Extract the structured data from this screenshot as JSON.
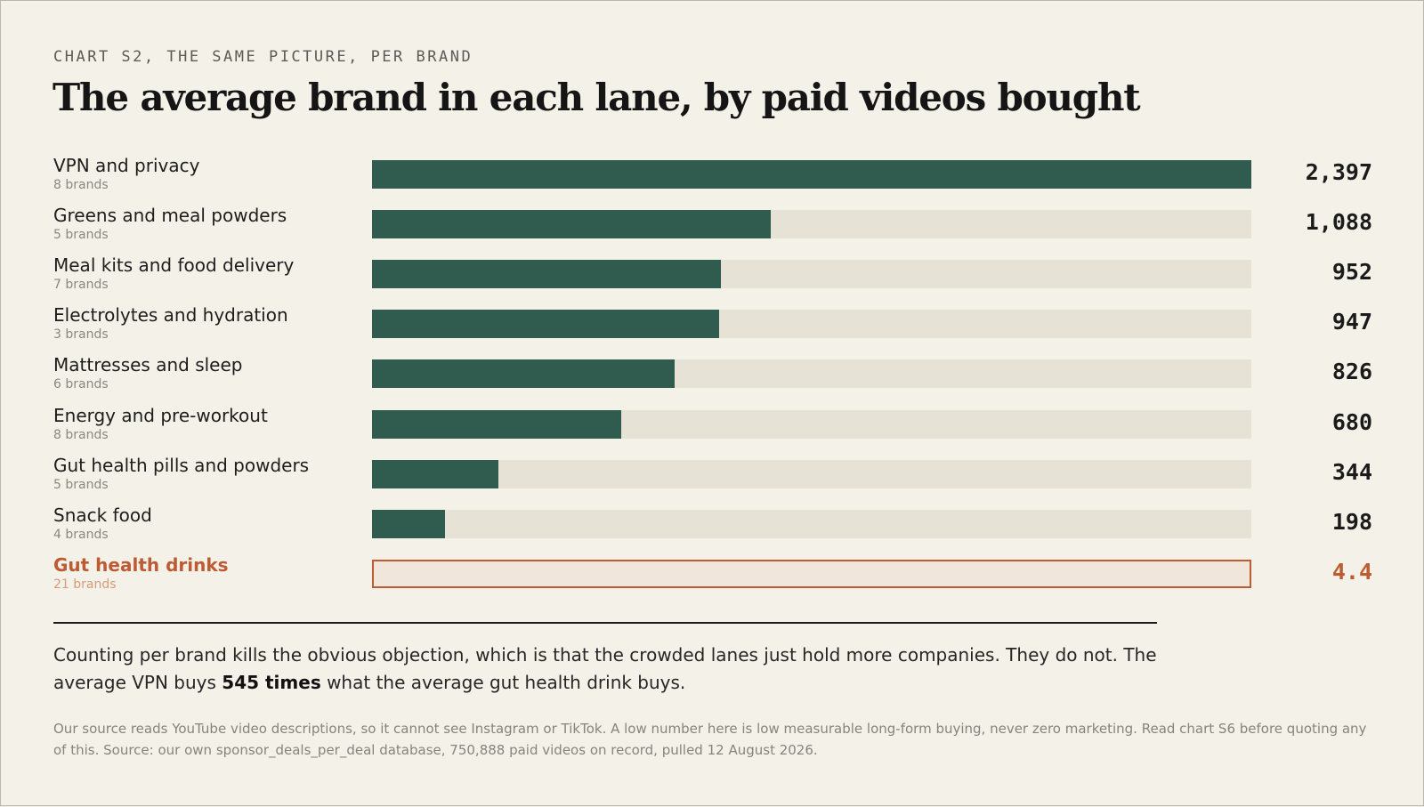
{
  "kicker": "CHART S2, THE SAME PICTURE, PER BRAND",
  "title": "The average brand in each lane, by paid videos bought",
  "colors": {
    "bar": "#2f5c4f",
    "track": "#e6e2d6",
    "highlight": "#bd5b33",
    "background": "#f4f1e8"
  },
  "chart_data": {
    "type": "bar",
    "orientation": "horizontal",
    "categories": [
      "VPN and privacy",
      "Greens and meal powders",
      "Meal kits and food delivery",
      "Electrolytes and hydration",
      "Mattresses and sleep",
      "Energy and pre-workout",
      "Gut health pills and powders",
      "Snack food",
      "Gut health drinks"
    ],
    "subtitles": [
      "8 brands",
      "5 brands",
      "7 brands",
      "3 brands",
      "6 brands",
      "8 brands",
      "5 brands",
      "4 brands",
      "21 brands"
    ],
    "values": [
      2397,
      1088,
      952,
      947,
      826,
      680,
      344,
      198,
      4.4
    ],
    "value_labels": [
      "2,397",
      "1,088",
      "952",
      "947",
      "826",
      "680",
      "344",
      "198",
      "4.4"
    ],
    "highlighted_category": "Gut health drinks",
    "xlim": [
      0,
      2397
    ],
    "grid": false,
    "legend": "none"
  },
  "summary": {
    "before": "Counting per brand kills the obvious objection, which is that the crowded lanes just hold more companies. They do not. The average VPN buys ",
    "bold": "545 times",
    "after": " what the average gut health drink buys."
  },
  "source_note": "Our source reads YouTube video descriptions, so it cannot see Instagram or TikTok. A low number here is low measurable long-form buying, never zero marketing. Read chart S6 before quoting any of this. Source: our own sponsor_deals_per_deal database, 750,888 paid videos on record, pulled 12 August 2026."
}
